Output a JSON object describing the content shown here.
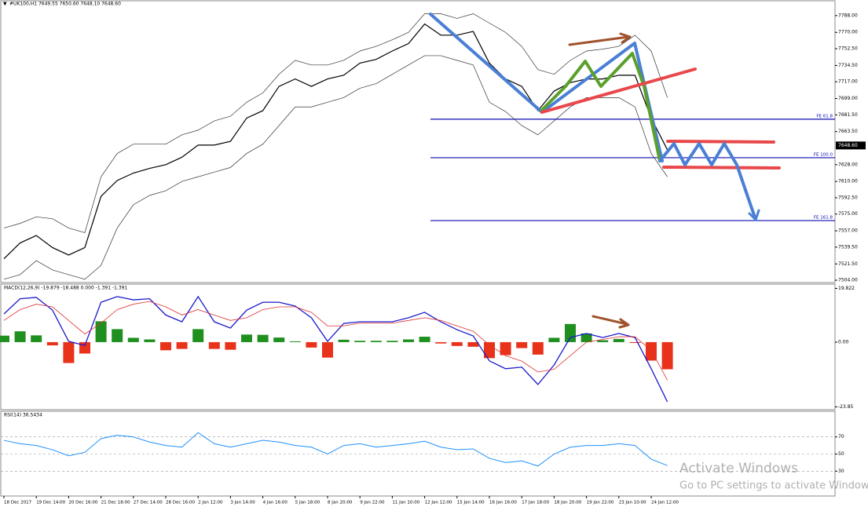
{
  "chart_data": [
    {
      "type": "price",
      "title": "#UK100,H1  7649.55 7650.60 7648.10 7648.60",
      "categories": [
        "18 Dec 2017",
        null,
        "19 Dec 14:00",
        null,
        "20 Dec 16:00",
        null,
        "21 Dec 18:00",
        null,
        "27 Dec 14:00",
        null,
        "28 Dec 16:00",
        null,
        "2 Jan 12:00",
        null,
        "3 Jan 14:00",
        null,
        "4 Jan 16:00",
        null,
        "5 Jan 18:00",
        null,
        "8 Jan 20:00",
        null,
        "9 Jan 22:00",
        null,
        "11 Jan 10:00",
        null,
        "12 Jan 12:00",
        null,
        "15 Jan 14:00",
        null,
        "16 Jan 16:00",
        null,
        "17 Jan 18:00",
        null,
        "18 Jan 20:00",
        null,
        "19 Jan 22:00",
        null,
        "23 Jan 10:00",
        null,
        "24 Jan 12:00",
        null
      ],
      "series": [
        {
          "color": "#000000",
          "width": 1.2,
          "values": [
            7527,
            7544,
            7552,
            7539,
            7531,
            7539,
            7594,
            7611,
            7619,
            7624,
            7628,
            7636,
            7649,
            7649,
            7653,
            7678,
            7686,
            7712,
            7720,
            7712,
            7720,
            7724,
            7737,
            7741,
            7750,
            7758,
            7779,
            7767,
            7767,
            7771,
            7737,
            7720,
            7712,
            7686,
            7707,
            7716,
            7720,
            7720,
            7724,
            7724,
            7678,
            7644
          ]
        },
        {
          "color": "#333333",
          "width": 0.7,
          "values": [
            7560,
            7565,
            7572,
            7570,
            7560,
            7555,
            7615,
            7640,
            7650,
            7650,
            7650,
            7660,
            7665,
            7675,
            7680,
            7695,
            7705,
            7725,
            7740,
            7735,
            7735,
            7740,
            7750,
            7755,
            7762,
            7770,
            7790,
            7790,
            7785,
            7790,
            7780,
            7770,
            7755,
            7730,
            7725,
            7740,
            7750,
            7752,
            7755,
            7767,
            7750,
            7700
          ]
        },
        {
          "color": "#333333",
          "width": 0.7,
          "values": [
            7505,
            7510,
            7525,
            7515,
            7510,
            7505,
            7520,
            7560,
            7585,
            7595,
            7600,
            7610,
            7615,
            7620,
            7625,
            7640,
            7650,
            7670,
            7690,
            7690,
            7695,
            7700,
            7710,
            7715,
            7725,
            7735,
            7745,
            7745,
            7740,
            7735,
            7695,
            7685,
            7670,
            7660,
            7675,
            7690,
            7700,
            7700,
            7700,
            7690,
            7640,
            7615
          ]
        }
      ],
      "ylim": [
        7501.5,
        7798
      ],
      "yticks": [
        {
          "value": 7788,
          "label": "7788.00"
        },
        {
          "value": 7770,
          "label": "7770.00"
        },
        {
          "value": 7752.5,
          "label": "7752.50"
        },
        {
          "value": 7734.5,
          "label": "7734.50"
        },
        {
          "value": 7717,
          "label": "7717.00"
        },
        {
          "value": 7699,
          "label": "7699.00"
        },
        {
          "value": 7681.5,
          "label": "7681.50"
        },
        {
          "value": 7663.5,
          "label": "7663.50"
        },
        {
          "value": 7628,
          "label": "7628.00"
        },
        {
          "value": 7610,
          "label": "7610.00"
        },
        {
          "value": 7592.5,
          "label": "7592.50"
        },
        {
          "value": 7575,
          "label": "7575.00"
        },
        {
          "value": 7557,
          "label": "7557.00"
        },
        {
          "value": 7539.5,
          "label": "7539.50"
        },
        {
          "value": 7521.5,
          "label": "7521.50"
        },
        {
          "value": 7504,
          "label": "7504.00"
        }
      ],
      "price_tag": {
        "value": 7648.6,
        "label": "7648.60"
      },
      "levels": [
        {
          "label": "FE 61.8",
          "value": 7676.8
        },
        {
          "label": "FE 100.0",
          "value": 7635.5
        },
        {
          "label": "FE 161.8",
          "value": 7568
        }
      ],
      "level_color": "#0b0bb5"
    },
    {
      "type": "macd",
      "title": "MACD(12,26,9) -19.879 -18.488 0.000 -1.391 -1.391",
      "histogram": {
        "color_up": "#1f8f1f",
        "color_down": "#e8331a",
        "values": [
          2.4,
          4,
          2.5,
          -1.2,
          -7.7,
          -4.2,
          7.7,
          4.8,
          1.6,
          1,
          -3,
          -2.5,
          4.8,
          -2.5,
          -2.8,
          2.8,
          2.7,
          1.7,
          0.3,
          -2,
          -5.7,
          0.9,
          0.5,
          0.5,
          0.5,
          1,
          2,
          -0.5,
          -1.4,
          -1.7,
          -5.9,
          -4.8,
          -2.2,
          -4.6,
          1.6,
          6.7,
          3.2,
          0.7,
          1.2,
          -0.3,
          -6.8,
          -10
        ]
      },
      "series": [
        {
          "color": "#1a1acc",
          "width": 1.3,
          "values": [
            10.4,
            16,
            16.5,
            11.8,
            0.3,
            -1.2,
            14.7,
            16.8,
            15.6,
            16,
            10,
            7.5,
            16.8,
            7.5,
            5.2,
            11.8,
            14.7,
            14.7,
            13.3,
            9,
            0.3,
            6.9,
            7.5,
            7.5,
            7.5,
            9,
            11,
            7.5,
            4.6,
            2.3,
            -6.9,
            -9.8,
            -9.2,
            -15.6,
            -8.4,
            1.7,
            3.2,
            1.7,
            3.2,
            1.7,
            -9.8,
            -22
          ]
        },
        {
          "color": "#e03030",
          "width": 0.8,
          "values": [
            8,
            12,
            14,
            13,
            8,
            3,
            7,
            12,
            14,
            15,
            13,
            10,
            12,
            10,
            8,
            9,
            12,
            13,
            13,
            11,
            6,
            6,
            7,
            7,
            7,
            8,
            9,
            8,
            6,
            4,
            -1,
            -5,
            -7,
            -11,
            -10,
            -5,
            0,
            1,
            2,
            2,
            -3,
            -14
          ]
        }
      ],
      "ylim": [
        -24.9,
        21.4
      ],
      "yticks": [
        19.822,
        {
          "value": 0,
          "label": "0.00"
        },
        -23.85
      ]
    },
    {
      "type": "rsi",
      "title": "RSI(14) 36.5434",
      "series": [
        {
          "color": "#1e90ff",
          "width": 1,
          "values": [
            66,
            62,
            60,
            55,
            48,
            52,
            68,
            72,
            70,
            64,
            60,
            58,
            75,
            62,
            58,
            62,
            66,
            64,
            60,
            58,
            50,
            60,
            62,
            58,
            60,
            62,
            65,
            58,
            55,
            56,
            45,
            40,
            42,
            36,
            50,
            58,
            60,
            60,
            62,
            60,
            44,
            36.5
          ]
        }
      ],
      "ylim": [
        0,
        100
      ],
      "yticks": [
        70,
        50,
        30
      ],
      "grid": true
    }
  ],
  "watermark": {
    "title": "Activate Windows",
    "subtitle": "Go to PC settings to activate Windows"
  }
}
